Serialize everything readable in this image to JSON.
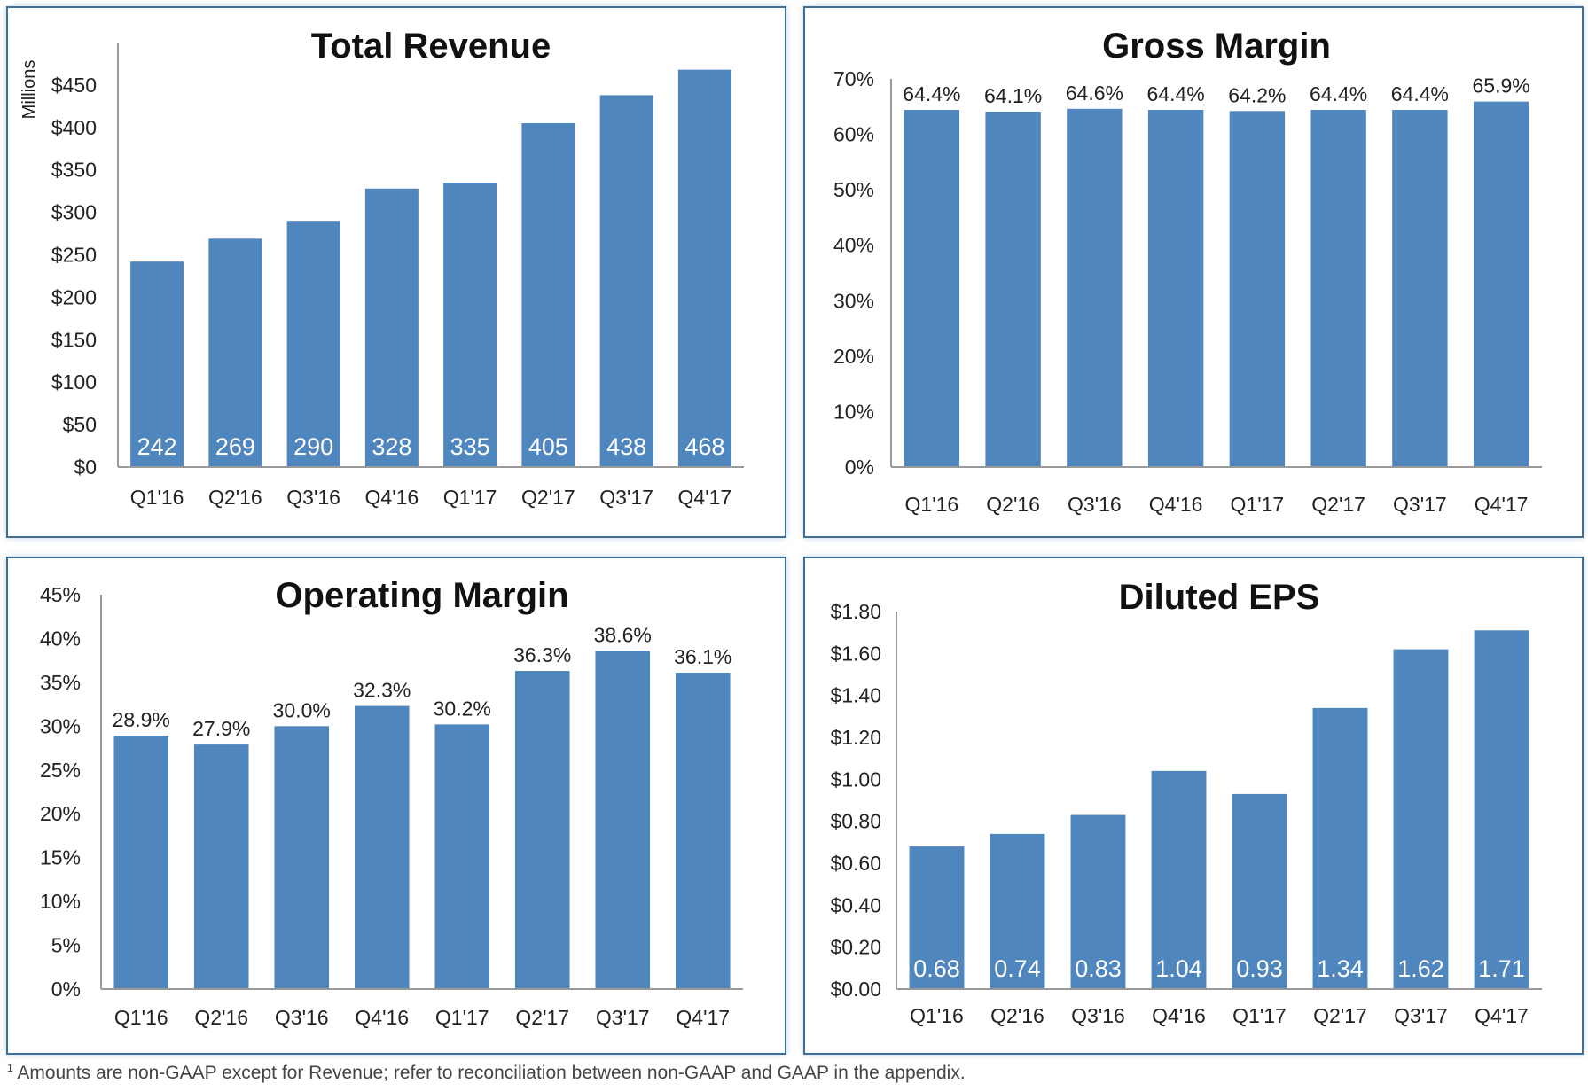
{
  "chart_data": [
    {
      "type": "bar",
      "title": "Total Revenue",
      "ylabel": "Millions",
      "categories": [
        "Q1'16",
        "Q2'16",
        "Q3'16",
        "Q4'16",
        "Q1'17",
        "Q2'17",
        "Q3'17",
        "Q4'17"
      ],
      "values": [
        242,
        269,
        290,
        328,
        335,
        405,
        438,
        468
      ],
      "value_labels": [
        "242",
        "269",
        "290",
        "328",
        "335",
        "405",
        "438",
        "468"
      ],
      "label_position": "inside-bottom",
      "yticks": [
        "$0",
        "$50",
        "$100",
        "$150",
        "$200",
        "$250",
        "$300",
        "$350",
        "$400",
        "$450"
      ],
      "ytick_values": [
        0,
        50,
        100,
        150,
        200,
        250,
        300,
        350,
        400,
        450
      ],
      "ylim": [
        0,
        500
      ],
      "grid": false,
      "color": "#4f86bd"
    },
    {
      "type": "bar",
      "title": "Gross Margin",
      "categories": [
        "Q1'16",
        "Q2'16",
        "Q3'16",
        "Q4'16",
        "Q1'17",
        "Q2'17",
        "Q3'17",
        "Q4'17"
      ],
      "values": [
        64.4,
        64.1,
        64.6,
        64.4,
        64.2,
        64.4,
        64.4,
        65.9
      ],
      "value_labels": [
        "64.4%",
        "64.1%",
        "64.6%",
        "64.4%",
        "64.2%",
        "64.4%",
        "64.4%",
        "65.9%"
      ],
      "label_position": "above",
      "yticks": [
        "0%",
        "10%",
        "20%",
        "30%",
        "40%",
        "50%",
        "60%",
        "70%"
      ],
      "ytick_values": [
        0,
        10,
        20,
        30,
        40,
        50,
        60,
        70
      ],
      "ylim": [
        0,
        70
      ],
      "grid": false,
      "color": "#4f86bd"
    },
    {
      "type": "bar",
      "title": "Operating Margin",
      "categories": [
        "Q1'16",
        "Q2'16",
        "Q3'16",
        "Q4'16",
        "Q1'17",
        "Q2'17",
        "Q3'17",
        "Q4'17"
      ],
      "values": [
        28.9,
        27.9,
        30.0,
        32.3,
        30.2,
        36.3,
        38.6,
        36.1
      ],
      "value_labels": [
        "28.9%",
        "27.9%",
        "30.0%",
        "32.3%",
        "30.2%",
        "36.3%",
        "38.6%",
        "36.1%"
      ],
      "label_position": "above",
      "yticks": [
        "0%",
        "5%",
        "10%",
        "15%",
        "20%",
        "25%",
        "30%",
        "35%",
        "40%",
        "45%"
      ],
      "ytick_values": [
        0,
        5,
        10,
        15,
        20,
        25,
        30,
        35,
        40,
        45
      ],
      "ylim": [
        0,
        45
      ],
      "grid": false,
      "color": "#4f86bd"
    },
    {
      "type": "bar",
      "title": "Diluted EPS",
      "categories": [
        "Q1'16",
        "Q2'16",
        "Q3'16",
        "Q4'16",
        "Q1'17",
        "Q2'17",
        "Q3'17",
        "Q4'17"
      ],
      "values": [
        0.68,
        0.74,
        0.83,
        1.04,
        0.93,
        1.34,
        1.62,
        1.71
      ],
      "value_labels": [
        "0.68",
        "0.74",
        "0.83",
        "1.04",
        "0.93",
        "1.34",
        "1.62",
        "1.71"
      ],
      "label_position": "inside-bottom",
      "yticks": [
        "$0.00",
        "$0.20",
        "$0.40",
        "$0.60",
        "$0.80",
        "$1.00",
        "$1.20",
        "$1.40",
        "$1.60",
        "$1.80"
      ],
      "ytick_values": [
        0,
        0.2,
        0.4,
        0.6,
        0.8,
        1.0,
        1.2,
        1.4,
        1.6,
        1.8
      ],
      "ylim": [
        0,
        1.8
      ],
      "grid": false,
      "color": "#4f86bd"
    }
  ],
  "footer": {
    "marker": "1",
    "text": "Amounts are non-GAAP except for Revenue; refer to reconciliation between non-GAAP and GAAP in the appendix."
  }
}
